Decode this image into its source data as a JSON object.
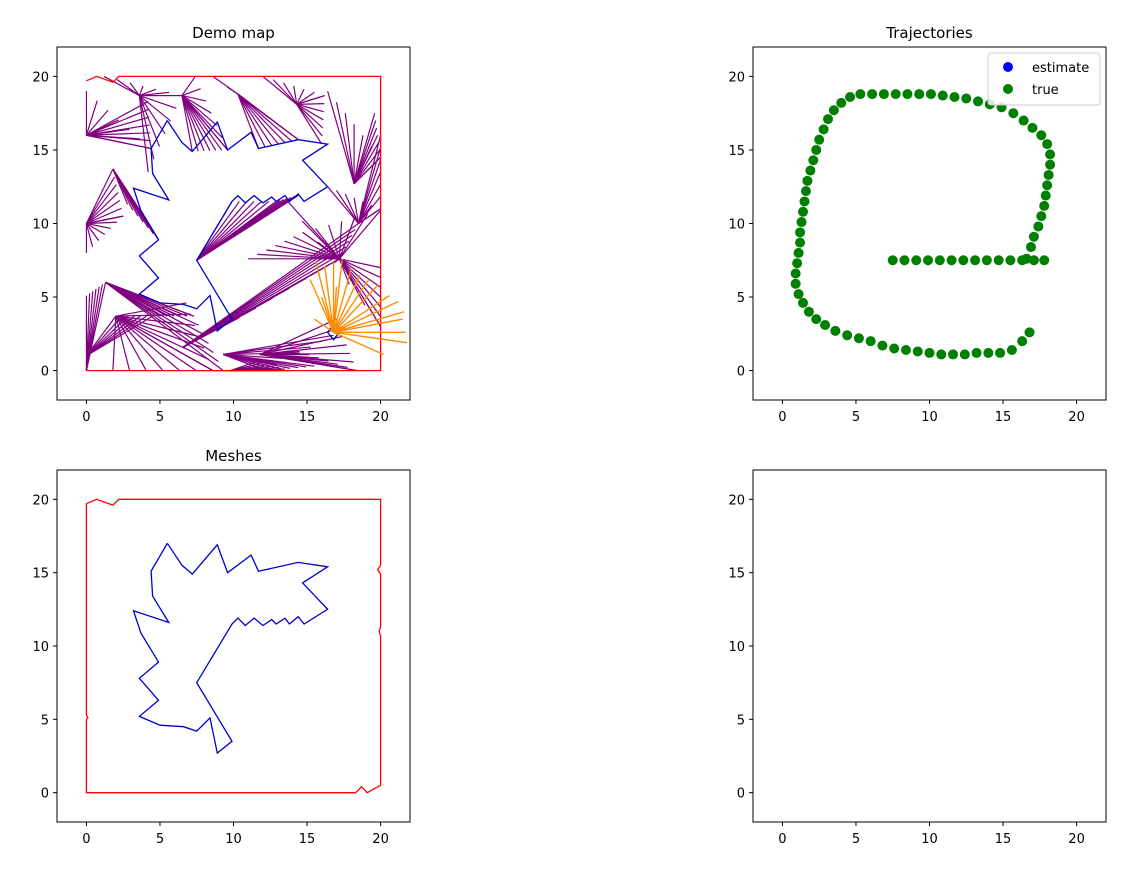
{
  "colors": {
    "background": "#ffffff",
    "axes_edge": "#000000",
    "obstacle_outline": "#0000cc",
    "wall_outline": "#ff0000",
    "rays_purple": "#800080",
    "rays_orange": "#ff8c00",
    "estimate": "#0000ff",
    "true": "#008000"
  },
  "chart_data": [
    {
      "type": "line",
      "title": "Demo map",
      "xlim": [
        -2,
        22
      ],
      "ylim": [
        -2,
        22
      ],
      "xticks": [
        0,
        5,
        10,
        15,
        20
      ],
      "yticks": [
        0,
        5,
        10,
        15,
        20
      ],
      "grid": false,
      "walls": [
        [
          0,
          19.7
        ],
        [
          0.7,
          20
        ],
        [
          1.8,
          19.6
        ],
        [
          2.2,
          20
        ],
        [
          12,
          20
        ],
        [
          20,
          20
        ],
        [
          20,
          0
        ],
        [
          18.3,
          0
        ],
        [
          0,
          0
        ]
      ],
      "obstacle": [
        [
          5.5,
          17
        ],
        [
          6.5,
          15.5
        ],
        [
          7.2,
          14.9
        ],
        [
          8.9,
          16.9
        ],
        [
          9.6,
          15
        ],
        [
          11.2,
          16.2
        ],
        [
          11.7,
          15.1
        ],
        [
          14.4,
          15.7
        ],
        [
          16.4,
          15.4
        ],
        [
          14.7,
          14.3
        ],
        [
          16.4,
          12.5
        ],
        [
          14.8,
          11.5
        ],
        [
          14.4,
          12
        ],
        [
          13.8,
          11.5
        ],
        [
          13.5,
          11.9
        ],
        [
          12.9,
          11.5
        ],
        [
          12.6,
          11.8
        ],
        [
          12,
          11.4
        ],
        [
          11.4,
          11.9
        ],
        [
          10.8,
          11.4
        ],
        [
          10.3,
          11.9
        ],
        [
          9.9,
          11.5
        ],
        [
          7.5,
          7.5
        ],
        [
          9.9,
          3.5
        ],
        [
          8.9,
          2.7
        ],
        [
          8.4,
          5.1
        ],
        [
          7.5,
          4.2
        ],
        [
          6.6,
          4.5
        ],
        [
          5,
          4.6
        ],
        [
          3.6,
          5.2
        ],
        [
          4.9,
          6.3
        ],
        [
          3.6,
          7.8
        ],
        [
          4.9,
          8.9
        ],
        [
          3.7,
          10.9
        ],
        [
          3.2,
          12.4
        ],
        [
          5.6,
          11.6
        ],
        [
          4.5,
          13.4
        ],
        [
          4.4,
          15.1
        ],
        [
          5.5,
          17
        ]
      ],
      "robot": [
        16.8,
        2.6
      ],
      "purple_rays": [
        [
          [
            0,
            0
          ],
          [
            1.3,
            6
          ],
          [
            0,
            5.1
          ]
        ],
        [
          [
            0,
            1
          ],
          [
            2,
            3.7
          ],
          [
            4.5,
            3.7
          ]
        ],
        [
          [
            1.3,
            6
          ],
          [
            4.6,
            3.7
          ],
          [
            7.3,
            3.7
          ],
          [
            9.3,
            0
          ]
        ],
        [
          [
            2,
            3.7
          ],
          [
            6.8,
            4.6
          ],
          [
            8.6,
            0
          ],
          [
            1.8,
            0
          ]
        ],
        [
          [
            0,
            10
          ],
          [
            1.8,
            13.7
          ],
          [
            2.5,
            10.5
          ],
          [
            0,
            8
          ]
        ],
        [
          [
            1.8,
            13.7
          ],
          [
            3.7,
            10.8
          ],
          [
            4.9,
            8.9
          ],
          [
            2.8,
            11.3
          ]
        ],
        [
          [
            0,
            16
          ],
          [
            4.2,
            18.3
          ],
          [
            4.4,
            15.1
          ],
          [
            0,
            19
          ]
        ],
        [
          [
            3.6,
            18.7
          ],
          [
            4.2,
            13.5
          ],
          [
            6.5,
            18.7
          ],
          [
            1.2,
            20
          ]
        ],
        [
          [
            6.5,
            18.7
          ],
          [
            7.2,
            14.9
          ],
          [
            9.6,
            15
          ],
          [
            7.4,
            20
          ]
        ],
        [
          [
            10.3,
            18.8
          ],
          [
            11.7,
            15.1
          ],
          [
            14.4,
            15.7
          ],
          [
            8.6,
            20
          ]
        ],
        [
          [
            14.3,
            18.1
          ],
          [
            16,
            15.4
          ],
          [
            16.2,
            18.7
          ],
          [
            12,
            20
          ]
        ],
        [
          [
            18.2,
            12.7
          ],
          [
            19.6,
            17.5
          ],
          [
            20,
            14.5
          ],
          [
            16.4,
            19
          ]
        ],
        [
          [
            18.5,
            10
          ],
          [
            16.4,
            12.5
          ],
          [
            20,
            11
          ],
          [
            20,
            16
          ]
        ],
        [
          [
            7.5,
            7.5
          ],
          [
            9.9,
            11.5
          ],
          [
            12.9,
            11.5
          ],
          [
            14.4,
            11.9
          ]
        ],
        [
          [
            17.2,
            7.6
          ],
          [
            11,
            7.6
          ],
          [
            14.7,
            9.4
          ],
          [
            20,
            10.9
          ]
        ],
        [
          [
            17.2,
            7.6
          ],
          [
            13.6,
            11.6
          ],
          [
            20,
            3
          ],
          [
            20,
            7
          ]
        ],
        [
          [
            6.6,
            1.6
          ],
          [
            10.4,
            3.6
          ],
          [
            17.2,
            7.6
          ],
          [
            18.5,
            10
          ]
        ],
        [
          [
            9.3,
            1.1
          ],
          [
            16.8,
            2.4
          ],
          [
            12.2,
            0
          ],
          [
            15.5,
            0.3
          ]
        ],
        [
          [
            11.8,
            1.1
          ],
          [
            17,
            3.5
          ],
          [
            18.4,
            0
          ],
          [
            14.5,
            1.3
          ]
        ],
        [
          [
            9.8,
            0
          ],
          [
            11.5,
            0.6
          ],
          [
            13.9,
            0
          ],
          [
            7.6,
            0
          ]
        ]
      ],
      "orange_rays": [
        [
          15.6,
          7.4
        ],
        [
          16.2,
          7.1
        ],
        [
          16.8,
          7.4
        ],
        [
          17.4,
          7.6
        ],
        [
          18.0,
          6.9
        ],
        [
          18.6,
          6.5
        ],
        [
          19.2,
          6.2
        ],
        [
          19.8,
          5.8
        ],
        [
          20.6,
          5.1
        ],
        [
          21.2,
          4.7
        ],
        [
          21.6,
          4.0
        ],
        [
          21.5,
          3.5
        ],
        [
          21.7,
          2.6
        ],
        [
          21.8,
          1.9
        ],
        [
          20.2,
          1.1
        ],
        [
          17.6,
          2.9
        ],
        [
          15.5,
          3.5
        ],
        [
          15.2,
          6.2
        ],
        [
          16.0,
          5.0
        ],
        [
          17.0,
          5.7
        ]
      ]
    },
    {
      "type": "scatter",
      "title": "Trajectories",
      "xlim": [
        -2,
        22
      ],
      "ylim": [
        -2,
        22
      ],
      "xticks": [
        0,
        5,
        10,
        15,
        20
      ],
      "yticks": [
        0,
        5,
        10,
        15,
        20
      ],
      "grid": false,
      "legend_position": "top-right",
      "series": [
        {
          "name": "estimate",
          "color": "#0000ff",
          "points": []
        },
        {
          "name": "true",
          "color": "#008000",
          "points": [
            [
              7.5,
              7.5
            ],
            [
              8.3,
              7.5
            ],
            [
              9.1,
              7.5
            ],
            [
              9.9,
              7.5
            ],
            [
              10.7,
              7.5
            ],
            [
              11.5,
              7.5
            ],
            [
              12.3,
              7.5
            ],
            [
              13.1,
              7.5
            ],
            [
              13.9,
              7.5
            ],
            [
              14.7,
              7.5
            ],
            [
              15.5,
              7.5
            ],
            [
              16.3,
              7.5
            ],
            [
              17.1,
              7.5
            ],
            [
              17.8,
              7.5
            ],
            [
              16.8,
              2.6
            ],
            [
              16.3,
              2.0
            ],
            [
              15.6,
              1.4
            ],
            [
              14.8,
              1.2
            ],
            [
              14.0,
              1.2
            ],
            [
              13.2,
              1.2
            ],
            [
              12.4,
              1.1
            ],
            [
              11.6,
              1.1
            ],
            [
              10.8,
              1.1
            ],
            [
              10.0,
              1.2
            ],
            [
              9.2,
              1.3
            ],
            [
              8.4,
              1.4
            ],
            [
              7.6,
              1.5
            ],
            [
              6.8,
              1.7
            ],
            [
              6.0,
              2.0
            ],
            [
              5.2,
              2.2
            ],
            [
              4.4,
              2.4
            ],
            [
              3.6,
              2.7
            ],
            [
              2.9,
              3.1
            ],
            [
              2.3,
              3.5
            ],
            [
              1.8,
              4.0
            ],
            [
              1.4,
              4.6
            ],
            [
              1.1,
              5.2
            ],
            [
              0.9,
              5.9
            ],
            [
              0.9,
              6.6
            ],
            [
              1.0,
              7.3
            ],
            [
              1.1,
              8.0
            ],
            [
              1.2,
              8.7
            ],
            [
              1.2,
              9.4
            ],
            [
              1.3,
              10.1
            ],
            [
              1.4,
              10.8
            ],
            [
              1.5,
              11.5
            ],
            [
              1.6,
              12.2
            ],
            [
              1.7,
              12.9
            ],
            [
              1.9,
              13.6
            ],
            [
              2.1,
              14.3
            ],
            [
              2.3,
              15.0
            ],
            [
              2.5,
              15.7
            ],
            [
              2.8,
              16.4
            ],
            [
              3.1,
              17.1
            ],
            [
              3.5,
              17.7
            ],
            [
              4.0,
              18.2
            ],
            [
              4.6,
              18.6
            ],
            [
              5.3,
              18.8
            ],
            [
              6.1,
              18.8
            ],
            [
              6.9,
              18.8
            ],
            [
              7.7,
              18.8
            ],
            [
              8.5,
              18.8
            ],
            [
              9.3,
              18.8
            ],
            [
              10.1,
              18.8
            ],
            [
              10.9,
              18.7
            ],
            [
              11.7,
              18.6
            ],
            [
              12.5,
              18.5
            ],
            [
              13.3,
              18.3
            ],
            [
              14.1,
              18.1
            ],
            [
              14.9,
              17.9
            ],
            [
              15.7,
              17.5
            ],
            [
              16.4,
              17.0
            ],
            [
              17.0,
              16.5
            ],
            [
              17.6,
              16.0
            ],
            [
              18.0,
              15.4
            ],
            [
              18.2,
              14.7
            ],
            [
              18.2,
              14.0
            ],
            [
              18.1,
              13.3
            ],
            [
              18.0,
              12.6
            ],
            [
              17.9,
              11.9
            ],
            [
              17.8,
              11.2
            ],
            [
              17.6,
              10.5
            ],
            [
              17.4,
              9.8
            ],
            [
              17.1,
              9.1
            ],
            [
              16.9,
              8.4
            ],
            [
              16.6,
              7.6
            ]
          ]
        }
      ]
    },
    {
      "type": "line",
      "title": "Meshes",
      "xlim": [
        -2,
        22
      ],
      "ylim": [
        -2,
        22
      ],
      "xticks": [
        0,
        5,
        10,
        15,
        20
      ],
      "yticks": [
        0,
        5,
        10,
        15,
        20
      ],
      "grid": false,
      "walls": [
        [
          0,
          19.7
        ],
        [
          0.7,
          20
        ],
        [
          1.8,
          19.6
        ],
        [
          2.2,
          20
        ],
        [
          12,
          20
        ],
        [
          20,
          20
        ],
        [
          20,
          19.2
        ],
        [
          20,
          15.5
        ],
        [
          19.8,
          15.2
        ],
        [
          20,
          14.9
        ],
        [
          20,
          11.3
        ],
        [
          19.9,
          11.0
        ],
        [
          20,
          10.7
        ],
        [
          20,
          0.5
        ],
        [
          19.6,
          0.3
        ],
        [
          19.1,
          0
        ],
        [
          18.7,
          0.4
        ],
        [
          18.3,
          0
        ],
        [
          0,
          0
        ],
        [
          0,
          2.7
        ],
        [
          0,
          5
        ],
        [
          0.1,
          5.1
        ],
        [
          0,
          5.3
        ],
        [
          0,
          19.7
        ]
      ],
      "obstacle": [
        [
          5.5,
          17
        ],
        [
          6.5,
          15.5
        ],
        [
          7.2,
          14.9
        ],
        [
          8.9,
          16.9
        ],
        [
          9.6,
          15
        ],
        [
          11.2,
          16.2
        ],
        [
          11.7,
          15.1
        ],
        [
          14.4,
          15.7
        ],
        [
          16.4,
          15.4
        ],
        [
          14.7,
          14.3
        ],
        [
          16.4,
          12.5
        ],
        [
          14.8,
          11.5
        ],
        [
          14.4,
          12
        ],
        [
          13.8,
          11.5
        ],
        [
          13.5,
          11.9
        ],
        [
          12.9,
          11.5
        ],
        [
          12.6,
          11.8
        ],
        [
          12,
          11.4
        ],
        [
          11.4,
          11.9
        ],
        [
          10.8,
          11.4
        ],
        [
          10.3,
          11.9
        ],
        [
          9.9,
          11.5
        ],
        [
          7.5,
          7.5
        ],
        [
          9.9,
          3.5
        ],
        [
          8.9,
          2.7
        ],
        [
          8.4,
          5.1
        ],
        [
          7.5,
          4.2
        ],
        [
          6.6,
          4.5
        ],
        [
          5,
          4.6
        ],
        [
          3.6,
          5.2
        ],
        [
          4.9,
          6.3
        ],
        [
          3.6,
          7.8
        ],
        [
          4.9,
          8.9
        ],
        [
          3.7,
          10.9
        ],
        [
          3.2,
          12.4
        ],
        [
          5.6,
          11.6
        ],
        [
          4.5,
          13.4
        ],
        [
          4.4,
          15.1
        ],
        [
          5.5,
          17
        ]
      ]
    },
    {
      "type": "scatter",
      "title": "",
      "xlim": [
        -2,
        22
      ],
      "ylim": [
        -2,
        22
      ],
      "xticks": [
        0,
        5,
        10,
        15,
        20
      ],
      "yticks": [
        0,
        5,
        10,
        15,
        20
      ],
      "grid": false,
      "series": []
    }
  ]
}
